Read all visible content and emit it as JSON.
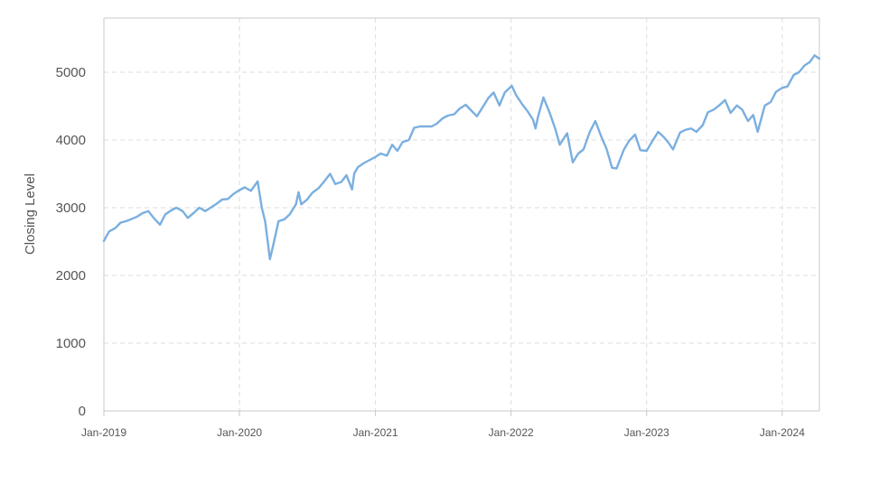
{
  "chart_data": {
    "type": "line",
    "title": "",
    "xlabel": "",
    "ylabel": "Closing Level",
    "ylim": [
      0,
      5800
    ],
    "xlim": [
      "2019-01-01",
      "2024-04-10"
    ],
    "grid": true,
    "grid_style": "dashed",
    "legend": "none",
    "y_ticks": [
      0,
      1000,
      2000,
      3000,
      4000,
      5000
    ],
    "y_tick_labels": [
      "0",
      "1000",
      "2000",
      "3000",
      "4000",
      "5000"
    ],
    "x_ticks": [
      "2019-01-01",
      "2020-01-01",
      "2021-01-01",
      "2022-01-01",
      "2023-01-01",
      "2024-01-01"
    ],
    "x_tick_labels": [
      "Jan-2019",
      "Jan-2020",
      "Jan-2021",
      "Jan-2022",
      "Jan-2023",
      "Jan-2024"
    ],
    "colors": {
      "line": "#7aafe0",
      "grid": "#dcdcdc",
      "axis": "#c8c8c8",
      "text": "#555555"
    },
    "series": [
      {
        "x": [
          "2019-01-01",
          "2019-01-15",
          "2019-02-01",
          "2019-02-15",
          "2019-03-01",
          "2019-03-15",
          "2019-04-01",
          "2019-04-15",
          "2019-05-01",
          "2019-05-15",
          "2019-06-01",
          "2019-06-15",
          "2019-07-01",
          "2019-07-15",
          "2019-08-01",
          "2019-08-15",
          "2019-09-01",
          "2019-09-15",
          "2019-10-01",
          "2019-10-15",
          "2019-11-01",
          "2019-11-15",
          "2019-12-01",
          "2019-12-15",
          "2020-01-01",
          "2020-01-15",
          "2020-02-01",
          "2020-02-19",
          "2020-03-01",
          "2020-03-10",
          "2020-03-23",
          "2020-04-01",
          "2020-04-15",
          "2020-05-01",
          "2020-05-15",
          "2020-06-01",
          "2020-06-08",
          "2020-06-15",
          "2020-07-01",
          "2020-07-15",
          "2020-08-01",
          "2020-08-15",
          "2020-09-01",
          "2020-09-15",
          "2020-10-01",
          "2020-10-15",
          "2020-10-30",
          "2020-11-05",
          "2020-11-15",
          "2020-12-01",
          "2020-12-15",
          "2021-01-01",
          "2021-01-15",
          "2021-02-01",
          "2021-02-15",
          "2021-03-01",
          "2021-03-15",
          "2021-04-01",
          "2021-04-15",
          "2021-05-01",
          "2021-05-15",
          "2021-06-01",
          "2021-06-15",
          "2021-07-01",
          "2021-07-15",
          "2021-08-01",
          "2021-08-15",
          "2021-09-01",
          "2021-09-15",
          "2021-10-01",
          "2021-10-15",
          "2021-11-01",
          "2021-11-15",
          "2021-12-01",
          "2021-12-15",
          "2022-01-03",
          "2022-01-15",
          "2022-02-01",
          "2022-02-15",
          "2022-03-01",
          "2022-03-08",
          "2022-03-15",
          "2022-03-29",
          "2022-04-15",
          "2022-05-01",
          "2022-05-12",
          "2022-06-01",
          "2022-06-16",
          "2022-07-01",
          "2022-07-15",
          "2022-08-01",
          "2022-08-16",
          "2022-09-01",
          "2022-09-15",
          "2022-09-30",
          "2022-10-12",
          "2022-11-01",
          "2022-11-15",
          "2022-12-01",
          "2022-12-15",
          "2023-01-01",
          "2023-01-15",
          "2023-02-01",
          "2023-02-15",
          "2023-03-01",
          "2023-03-13",
          "2023-04-01",
          "2023-04-15",
          "2023-05-01",
          "2023-05-15",
          "2023-06-01",
          "2023-06-15",
          "2023-07-01",
          "2023-07-15",
          "2023-07-31",
          "2023-08-15",
          "2023-09-01",
          "2023-09-15",
          "2023-10-01",
          "2023-10-15",
          "2023-10-27",
          "2023-11-15",
          "2023-12-01",
          "2023-12-15",
          "2024-01-01",
          "2024-01-15",
          "2024-02-01",
          "2024-02-15",
          "2024-03-01",
          "2024-03-15",
          "2024-03-28",
          "2024-04-10"
        ],
        "y": [
          2510,
          2650,
          2700,
          2780,
          2800,
          2830,
          2870,
          2920,
          2950,
          2850,
          2750,
          2900,
          2960,
          3000,
          2950,
          2850,
          2930,
          3000,
          2950,
          3000,
          3060,
          3120,
          3130,
          3200,
          3260,
          3300,
          3250,
          3390,
          3000,
          2800,
          2240,
          2450,
          2800,
          2830,
          2900,
          3050,
          3230,
          3050,
          3120,
          3220,
          3290,
          3380,
          3500,
          3350,
          3380,
          3480,
          3270,
          3510,
          3600,
          3660,
          3700,
          3750,
          3800,
          3770,
          3930,
          3840,
          3970,
          4000,
          4180,
          4200,
          4200,
          4200,
          4240,
          4320,
          4360,
          4380,
          4460,
          4520,
          4440,
          4350,
          4470,
          4620,
          4700,
          4510,
          4700,
          4800,
          4660,
          4520,
          4420,
          4300,
          4170,
          4350,
          4630,
          4400,
          4150,
          3930,
          4100,
          3670,
          3800,
          3860,
          4120,
          4280,
          4050,
          3870,
          3590,
          3580,
          3860,
          3990,
          4080,
          3850,
          3840,
          3970,
          4120,
          4050,
          3960,
          3860,
          4110,
          4150,
          4170,
          4120,
          4220,
          4410,
          4450,
          4510,
          4590,
          4400,
          4510,
          4450,
          4280,
          4370,
          4120,
          4510,
          4560,
          4710,
          4770,
          4790,
          4960,
          5000,
          5100,
          5150,
          5250,
          5200
        ]
      }
    ]
  },
  "axes": {
    "ylabel": "Closing Level",
    "y_ticks": [
      "0",
      "1000",
      "2000",
      "3000",
      "4000",
      "5000"
    ],
    "x_ticks": [
      "Jan-2019",
      "Jan-2020",
      "Jan-2021",
      "Jan-2022",
      "Jan-2023",
      "Jan-2024"
    ]
  }
}
